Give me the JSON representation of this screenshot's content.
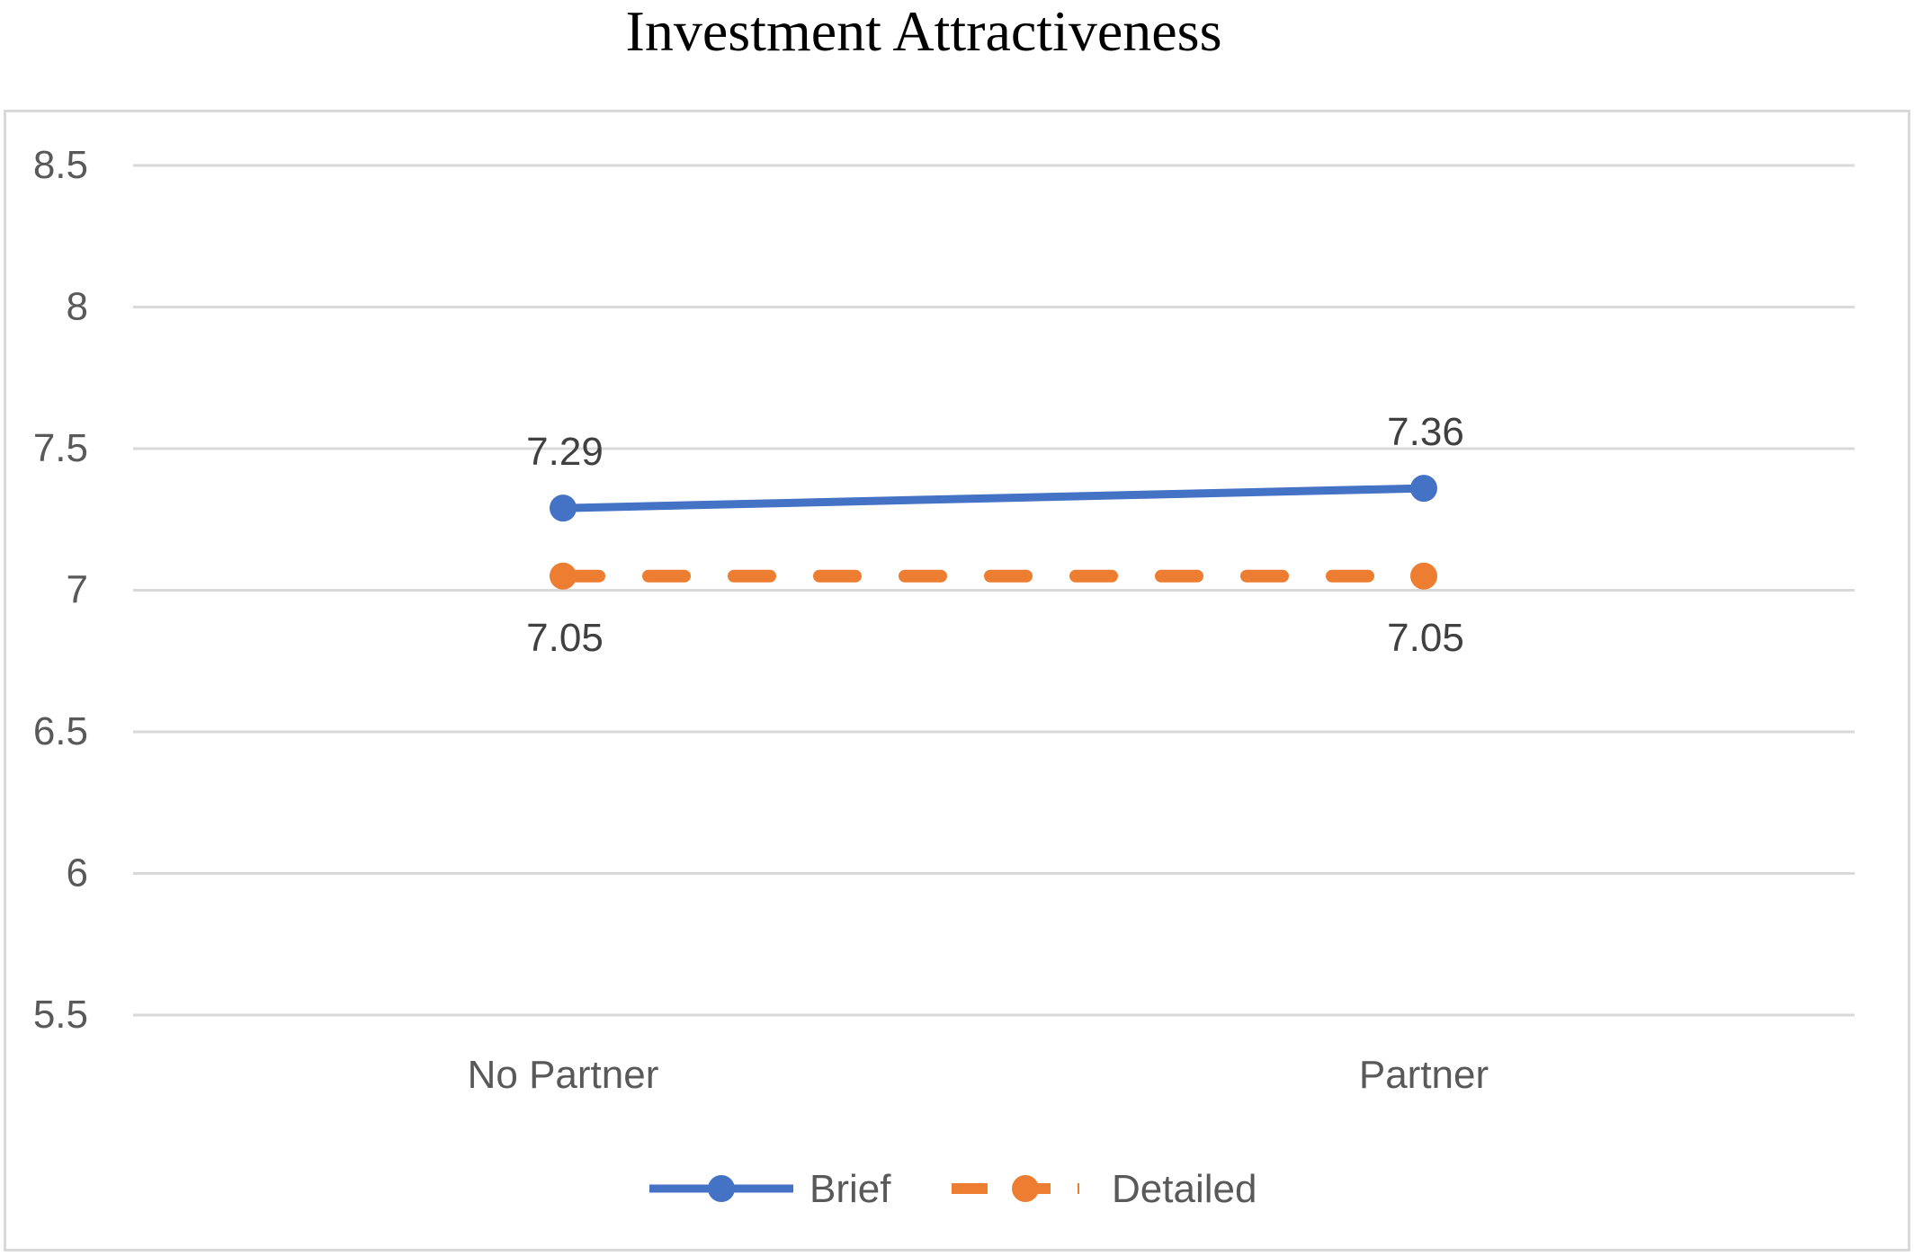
{
  "chart_data": {
    "type": "line",
    "title": "Investment Attractiveness",
    "categories": [
      "No Partner",
      "Partner"
    ],
    "ylim": [
      5.5,
      8.5
    ],
    "yticks": [
      "8.5",
      "8",
      "7.5",
      "7",
      "6.5",
      "6",
      "5.5"
    ],
    "grid": true,
    "legend_position": "bottom",
    "series": [
      {
        "name": "Brief",
        "values": [
          7.29,
          7.36
        ],
        "labels": [
          "7.29",
          "7.36"
        ],
        "color": "#4472c4",
        "style": "solid",
        "label_position": "above"
      },
      {
        "name": "Detailed",
        "values": [
          7.05,
          7.05
        ],
        "labels": [
          "7.05",
          "7.05"
        ],
        "color": "#ed7d31",
        "style": "dashed",
        "label_position": "below"
      }
    ]
  }
}
